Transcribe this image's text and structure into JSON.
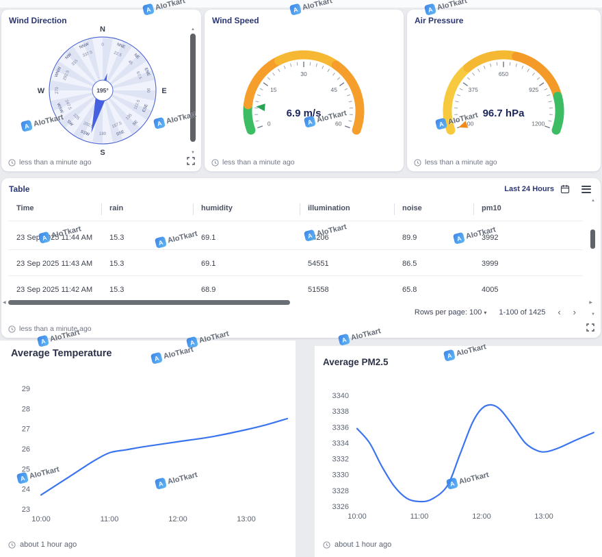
{
  "watermark": {
    "text": "AIoTkart",
    "logo_letter": "A"
  },
  "cards": {
    "wind_direction": {
      "title": "Wind Direction",
      "value": "195°",
      "heading_deg": 195,
      "cardinals": [
        "N",
        "NNE",
        "NE",
        "ENE",
        "E",
        "ESE",
        "SE",
        "SSE",
        "S",
        "SSW",
        "SW",
        "WSW",
        "W",
        "WNW",
        "NW",
        "NNW"
      ],
      "degree_labels": [
        "0",
        "22.5",
        "45",
        "67.5",
        "90",
        "112.5",
        "135",
        "157.5",
        "180",
        "202.5",
        "225",
        "247.5",
        "270",
        "292.5",
        "315",
        "337.5"
      ],
      "timestamp": "less than a minute ago"
    },
    "wind_speed": {
      "title": "Wind Speed",
      "value": 6.9,
      "value_label": "6.9 m/s",
      "min": 0,
      "max": 60,
      "tick_labels": [
        "0",
        "15",
        "30",
        "45",
        "60"
      ],
      "segments": [
        [
          0,
          0.12,
          "#3dbd63"
        ],
        [
          0.12,
          0.38,
          "#f59e2b"
        ],
        [
          0.38,
          0.66,
          "#f6b733"
        ],
        [
          0.66,
          1,
          "#f59e2b"
        ]
      ],
      "pointer_color": "#2ca457",
      "timestamp": "less than a minute ago"
    },
    "air_pressure": {
      "title": "Air Pressure",
      "value": 96.7,
      "value_label": "96.7 hPa",
      "min": 100,
      "max": 1200,
      "tick_labels": [
        "100",
        "375",
        "650",
        "925",
        "1200"
      ],
      "segments": [
        [
          0,
          0.32,
          "#f6c93e"
        ],
        [
          0.32,
          0.56,
          "#f5b832"
        ],
        [
          0.56,
          0.84,
          "#f39a28"
        ],
        [
          0.84,
          1,
          "#3dbd63"
        ]
      ],
      "pointer_color": "#f08c1e",
      "timestamp": "less than a minute ago"
    }
  },
  "table": {
    "title": "Table",
    "range_label": "Last 24 Hours",
    "columns": [
      "Time",
      "rain",
      "humidity",
      "illumination",
      "noise",
      "pm10"
    ],
    "rows": [
      [
        "23 Sep 2025 11:44 AM",
        "15.3",
        "69.1",
        "54206",
        "89.9",
        "3992"
      ],
      [
        "23 Sep 2025 11:43 AM",
        "15.3",
        "69.1",
        "54551",
        "86.5",
        "3999"
      ],
      [
        "23 Sep 2025 11:42 AM",
        "15.3",
        "68.9",
        "51558",
        "65.8",
        "4005"
      ]
    ],
    "pagination": {
      "rows_per_page_label": "Rows per page:",
      "rows_per_page": "100",
      "range_text": "1-100 of 1425"
    },
    "timestamp": "less than a minute ago"
  },
  "bottom_cards": {
    "temperature": {
      "timestamp": "about 1 hour ago"
    },
    "pm25": {
      "timestamp": "about 1 hour ago"
    }
  },
  "chart_data": [
    {
      "type": "line",
      "title": "Average Temperature",
      "x_tick_labels": [
        "10:00",
        "11:00",
        "12:00",
        "13:00"
      ],
      "x_tick_hours": [
        10,
        11,
        12,
        13
      ],
      "y_ticks": [
        29,
        28,
        27,
        26,
        25,
        24,
        23
      ],
      "ylim": [
        23,
        29
      ],
      "line_color": "#3b74ef",
      "legend": "none",
      "grid": "off",
      "points": [
        [
          10,
          23.7
        ],
        [
          10.25,
          24.25
        ],
        [
          10.5,
          24.8
        ],
        [
          10.75,
          25.35
        ],
        [
          11,
          25.8
        ],
        [
          11.25,
          25.95
        ],
        [
          11.5,
          26.1
        ],
        [
          12,
          26.35
        ],
        [
          12.5,
          26.6
        ],
        [
          13,
          26.95
        ],
        [
          13.3,
          27.2
        ],
        [
          13.6,
          27.5
        ]
      ]
    },
    {
      "type": "line",
      "title": "Average PM2.5",
      "x_tick_labels": [
        "10:00",
        "11:00",
        "12:00",
        "13:00"
      ],
      "x_tick_hours": [
        10,
        11,
        12,
        13
      ],
      "y_ticks": [
        3340,
        3338,
        3336,
        3334,
        3332,
        3330,
        3328,
        3326
      ],
      "ylim": [
        3326,
        3340
      ],
      "line_color": "#3b74ef",
      "legend": "none",
      "grid": "off",
      "points": [
        [
          10,
          3335.8
        ],
        [
          10.2,
          3334
        ],
        [
          10.4,
          3331
        ],
        [
          10.6,
          3328.5
        ],
        [
          10.8,
          3327
        ],
        [
          11,
          3326.6
        ],
        [
          11.2,
          3326.9
        ],
        [
          11.45,
          3328.6
        ],
        [
          11.65,
          3332.5
        ],
        [
          11.85,
          3336.5
        ],
        [
          12,
          3338.3
        ],
        [
          12.15,
          3338.8
        ],
        [
          12.3,
          3338.2
        ],
        [
          12.5,
          3336.2
        ],
        [
          12.7,
          3334
        ],
        [
          12.9,
          3333
        ],
        [
          13.05,
          3332.9
        ],
        [
          13.25,
          3333.4
        ],
        [
          13.5,
          3334.3
        ],
        [
          13.8,
          3335.3
        ]
      ]
    }
  ]
}
